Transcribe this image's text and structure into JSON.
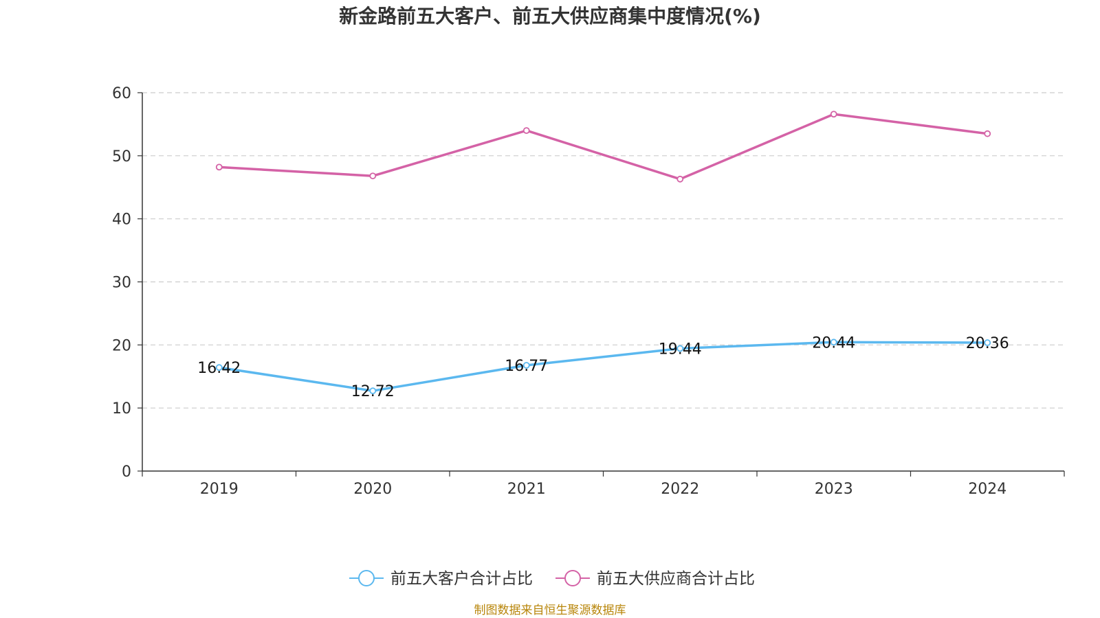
{
  "chart_data": {
    "type": "line",
    "title": "新金路前五大客户、前五大供应商集中度情况(%)",
    "categories": [
      "2019",
      "2020",
      "2021",
      "2022",
      "2023",
      "2024"
    ],
    "ylim": [
      0,
      60
    ],
    "yticks": [
      0,
      10,
      20,
      30,
      40,
      50,
      60
    ],
    "grid": true,
    "legend_position": "bottom",
    "series": [
      {
        "name": "前五大客户合计占比",
        "color": "#5bb8ef",
        "values": [
          16.42,
          12.72,
          16.77,
          19.44,
          20.44,
          20.36
        ],
        "labels": [
          "16.42",
          "12.72",
          "16.77",
          "19.44",
          "20.44",
          "20.36"
        ],
        "show_labels": true
      },
      {
        "name": "前五大供应商合计占比",
        "color": "#d462a6",
        "values": [
          48.2,
          46.8,
          54.0,
          46.3,
          56.6,
          53.5
        ],
        "show_labels": false
      }
    ],
    "source": "制图数据来自恒生聚源数据库"
  }
}
